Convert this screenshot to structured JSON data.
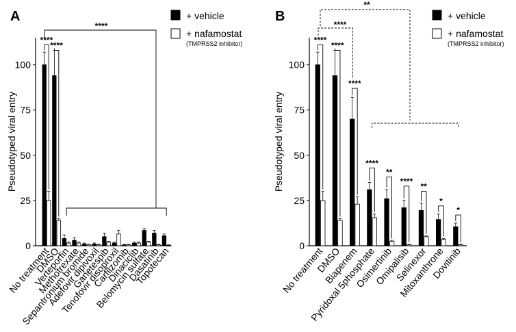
{
  "chart_data": [
    {
      "type": "bar",
      "panel_label": "A",
      "ylabel": "Pseudotyped viral entry",
      "ylim": [
        0,
        115
      ],
      "yticks": [
        0,
        25,
        50,
        75,
        100
      ],
      "categories": [
        "No treatment",
        "DMSO",
        "Verteporfin",
        "Methotrexate",
        "Sepantronium bromide",
        "Adefovir dipivoxil",
        "Ganetespib",
        "Tenofovir disoproxil",
        "Carfilzomib",
        "Dinaciclib",
        "Belomycin sulfate",
        "Dasatinib",
        "Topotecan"
      ],
      "series": [
        {
          "name": "+ vehicle",
          "color": "#000000",
          "values": [
            100,
            94,
            4,
            3,
            1,
            1,
            5,
            1.5,
            0.5,
            1.5,
            8.5,
            7,
            5.5
          ],
          "errors": [
            7,
            14,
            2,
            1.5,
            0.5,
            0.5,
            2,
            0.5,
            0.3,
            0.5,
            1,
            1.5,
            1
          ]
        },
        {
          "name": "+ nafamostat",
          "color": "#ffffff",
          "values": [
            25,
            14,
            1.5,
            1.5,
            0.5,
            0.5,
            2,
            6.5,
            0.5,
            1.5,
            2,
            0.5,
            0.3
          ],
          "errors": [
            5,
            1,
            0.5,
            0.5,
            0.3,
            0.3,
            0.5,
            2,
            0.3,
            0.5,
            0.5,
            0.3,
            0.2
          ]
        }
      ],
      "legend": {
        "items": [
          "+ vehicle",
          "+ nafamostat"
        ],
        "subnote": "(TMPRSS2 inhibitor)",
        "position": "top-right"
      },
      "annotations": [
        "****",
        "****",
        "****"
      ]
    },
    {
      "type": "bar",
      "panel_label": "B",
      "ylabel": "Pseudotyped viral entry",
      "ylim": [
        0,
        115
      ],
      "yticks": [
        0,
        25,
        50,
        75,
        100
      ],
      "categories": [
        "No treatment",
        "DMSO",
        "Biapenem",
        "Pyridoxal 5phosphate",
        "Osimertinib",
        "Omipalisib",
        "Selinexor",
        "Mitoxanthrone",
        "Dovitinib"
      ],
      "series": [
        {
          "name": "+ vehicle",
          "color": "#000000",
          "values": [
            100,
            94,
            70,
            31,
            26,
            21,
            19.5,
            14.5,
            10.5
          ],
          "errors": [
            7,
            14,
            12,
            4,
            5,
            4,
            4,
            3,
            2
          ]
        },
        {
          "name": "+ nafamostat",
          "color": "#ffffff",
          "values": [
            25,
            14,
            23,
            15.5,
            2.5,
            0.5,
            5,
            3.5,
            0.5
          ],
          "errors": [
            5,
            1,
            4,
            2,
            0.5,
            0.3,
            0.5,
            0.5,
            0.3
          ]
        }
      ],
      "legend": {
        "items": [
          "+ vehicle",
          "+ nafamostat"
        ],
        "subnote": "(TMPRSS2 inhibitor)",
        "position": "top-right"
      },
      "annotations": [
        "****",
        "**",
        "****",
        "****",
        "****",
        "**",
        "****",
        "****",
        "**",
        "*",
        "*"
      ]
    }
  ]
}
